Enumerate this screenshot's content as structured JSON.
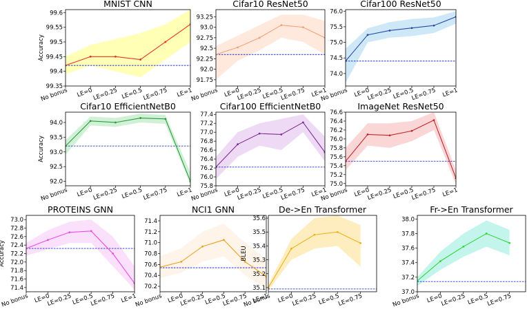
{
  "chart_data": [
    {
      "type": "line",
      "title": "MNIST CNN",
      "ylabel": "Accuracy",
      "categories": [
        "No bonus",
        "LE=0",
        "LE=0.25",
        "LE=0.5",
        "LE=0.75",
        "LE=1"
      ],
      "yticks": [
        "99.35",
        "99.4",
        "99.45",
        "99.5",
        "99.55",
        "99.6"
      ],
      "ylim": [
        99.35,
        99.61
      ],
      "color": "#e8352a",
      "fill": "#ffff9e",
      "values": [
        99.42,
        99.45,
        99.45,
        99.44,
        99.5,
        99.56
      ],
      "upper": [
        99.45,
        99.49,
        99.51,
        99.53,
        99.56,
        99.61
      ],
      "lower": [
        99.39,
        99.42,
        99.4,
        99.38,
        99.44,
        99.5
      ],
      "baseline": 99.42
    },
    {
      "type": "line",
      "title": "Cifar10 ResNet50",
      "ylabel": "",
      "categories": [
        "No bonus",
        "LE=0",
        "LE=0.25",
        "LE=0.5",
        "LE=0.75",
        "LE=1"
      ],
      "yticks": [
        "91.75",
        "92.0",
        "92.25",
        "92.5",
        "92.75",
        "93.0",
        "93.25"
      ],
      "ylim": [
        91.6,
        93.42
      ],
      "color": "#f5a07a",
      "fill": "#fde2d0",
      "values": [
        92.35,
        92.52,
        92.75,
        93.05,
        93.0,
        92.75
      ],
      "upper": [
        92.55,
        92.8,
        93.05,
        93.3,
        93.3,
        93.15
      ],
      "lower": [
        91.75,
        92.2,
        92.45,
        92.75,
        92.65,
        92.35
      ],
      "baseline": 92.35
    },
    {
      "type": "line",
      "title": "Cifar100 ResNet50",
      "ylabel": "",
      "categories": [
        "No bonus",
        "LE=0",
        "LE=0.25",
        "LE=0.5",
        "LE=0.75",
        "LE=1"
      ],
      "yticks": [
        "74.0",
        "74.5",
        "75.0",
        "75.5",
        "76.0"
      ],
      "ylim": [
        73.6,
        76.05
      ],
      "color": "#2a4aa5",
      "fill": "#bde0f5",
      "values": [
        74.4,
        75.24,
        75.38,
        75.46,
        75.54,
        75.82
      ],
      "upper": [
        74.8,
        75.45,
        75.65,
        75.75,
        75.8,
        76.0
      ],
      "lower": [
        73.7,
        75.0,
        75.15,
        75.2,
        75.3,
        75.6
      ],
      "baseline": 74.4
    },
    {
      "type": "line",
      "title": "Cifar10 EfficientNetB0",
      "ylabel": "Accuracy",
      "categories": [
        "No bonus",
        "LE=0",
        "LE=0.25",
        "LE=0.5",
        "LE=0.75",
        "LE=1"
      ],
      "yticks": [
        "92.0",
        "92.5",
        "93.0",
        "93.5",
        "94.0"
      ],
      "ylim": [
        91.85,
        94.35
      ],
      "color": "#2e9a3e",
      "fill": "#c2ecc8",
      "values": [
        93.2,
        94.05,
        94.0,
        94.15,
        94.12,
        92.0
      ],
      "upper": [
        93.4,
        94.2,
        94.15,
        94.3,
        94.25,
        92.3
      ],
      "lower": [
        92.9,
        93.9,
        93.85,
        94.0,
        93.95,
        91.9
      ],
      "baseline": 93.2
    },
    {
      "type": "line",
      "title": "Cifar100 EfficientNetB0",
      "ylabel": "",
      "categories": [
        "No bonus",
        "LE=0",
        "LE=0.25",
        "LE=0.5",
        "LE=0.75",
        "LE=1"
      ],
      "yticks": [
        "75.8",
        "76.0",
        "76.2",
        "76.4",
        "76.6",
        "76.8",
        "77.0",
        "77.2",
        "77.4"
      ],
      "ylim": [
        75.8,
        77.45
      ],
      "color": "#7c2e9a",
      "fill": "#e8cdf0",
      "values": [
        76.22,
        76.73,
        76.97,
        76.95,
        77.22,
        76.55
      ],
      "upper": [
        76.45,
        77.0,
        77.2,
        77.3,
        77.4,
        76.9
      ],
      "lower": [
        75.95,
        76.45,
        76.7,
        76.6,
        77.0,
        76.35
      ],
      "baseline": 76.22
    },
    {
      "type": "line",
      "title": "ImageNet ResNet50",
      "ylabel": "",
      "categories": [
        "No bonus",
        "LE=0",
        "LE=0.25",
        "LE=0.5",
        "LE=0.75",
        "LE=1"
      ],
      "yticks": [
        "75.0",
        "75.2",
        "75.4",
        "75.6",
        "75.8",
        "76.0",
        "76.2",
        "76.4",
        "76.6"
      ],
      "ylim": [
        74.95,
        76.6
      ],
      "color": "#c0272d",
      "fill": "#f8c8c8",
      "values": [
        75.5,
        76.1,
        76.08,
        76.18,
        76.42,
        75.12
      ],
      "upper": [
        75.8,
        76.35,
        76.35,
        76.4,
        76.6,
        75.3
      ],
      "lower": [
        75.3,
        75.85,
        75.8,
        75.95,
        76.2,
        74.98
      ],
      "baseline": 75.5
    },
    {
      "type": "line",
      "title": "PROTEINS GNN",
      "ylabel": "Accuracy",
      "categories": [
        "No bonus",
        "LE=0",
        "LE=0.25",
        "LE=0.5",
        "LE=0.75",
        "LE=1"
      ],
      "yticks": [
        "71.4",
        "71.6",
        "71.8",
        "72.0",
        "72.2",
        "72.4",
        "72.6",
        "72.8",
        "73.0"
      ],
      "ylim": [
        71.3,
        73.1
      ],
      "color": "#e84ce8",
      "fill": "#f8d6f8",
      "values": [
        72.32,
        72.52,
        72.7,
        72.73,
        72.2,
        71.5
      ],
      "upper": [
        72.45,
        72.75,
        72.95,
        73.0,
        72.6,
        71.9
      ],
      "lower": [
        72.15,
        72.3,
        72.45,
        72.45,
        71.9,
        71.35
      ],
      "baseline": 72.32
    },
    {
      "type": "line",
      "title": "NCI1 GNN",
      "ylabel": "",
      "categories": [
        "No bonus",
        "LE=0",
        "LE=0.25",
        "LE=0.5",
        "LE=0.75",
        "LE=1"
      ],
      "yticks": [
        "70.2",
        "70.4",
        "70.6",
        "70.8",
        "71.0",
        "71.2",
        "71.4"
      ],
      "ylim": [
        70.1,
        71.5
      ],
      "color": "#f0a020",
      "fill": "#fdf0e2",
      "values": [
        70.55,
        70.65,
        70.93,
        71.05,
        70.65,
        70.38
      ],
      "upper": [
        70.75,
        70.9,
        71.2,
        71.35,
        71.0,
        70.7
      ],
      "lower": [
        70.35,
        70.45,
        70.65,
        70.75,
        70.4,
        70.15
      ],
      "baseline": 70.54
    },
    {
      "type": "line",
      "title": "De->En Transformer",
      "ylabel": "BLEU",
      "categories": [
        "No bonus",
        "LE=0",
        "LE=0.25",
        "LE=0.5",
        "LE=0.75"
      ],
      "yticks": [
        "35.1",
        "35.2",
        "35.3",
        "35.4",
        "35.5",
        "35.6"
      ],
      "ylim": [
        35.07,
        35.62
      ],
      "color": "#f0b020",
      "fill": "#fde7a8",
      "values": [
        35.1,
        35.38,
        35.48,
        35.5,
        35.42
      ],
      "upper": [
        35.12,
        35.45,
        35.6,
        35.62,
        35.55
      ],
      "lower": [
        35.08,
        35.3,
        35.38,
        35.4,
        35.25
      ],
      "baseline": 35.09
    },
    {
      "type": "line",
      "title": "Fr->En Transformer",
      "ylabel": "",
      "categories": [
        "No bonus",
        "LE=0",
        "LE=0.25",
        "LE=0.5",
        "LE=0.75"
      ],
      "yticks": [
        "37.0",
        "37.2",
        "37.4",
        "37.6",
        "37.8",
        "38.0"
      ],
      "ylim": [
        37.0,
        38.05
      ],
      "color": "#35d535",
      "fill": "#b0f2e6",
      "values": [
        37.15,
        37.42,
        37.62,
        37.8,
        37.67
      ],
      "upper": [
        37.2,
        37.55,
        37.8,
        37.98,
        37.85
      ],
      "lower": [
        37.08,
        37.3,
        37.48,
        37.62,
        37.5
      ],
      "baseline": 37.14
    }
  ]
}
